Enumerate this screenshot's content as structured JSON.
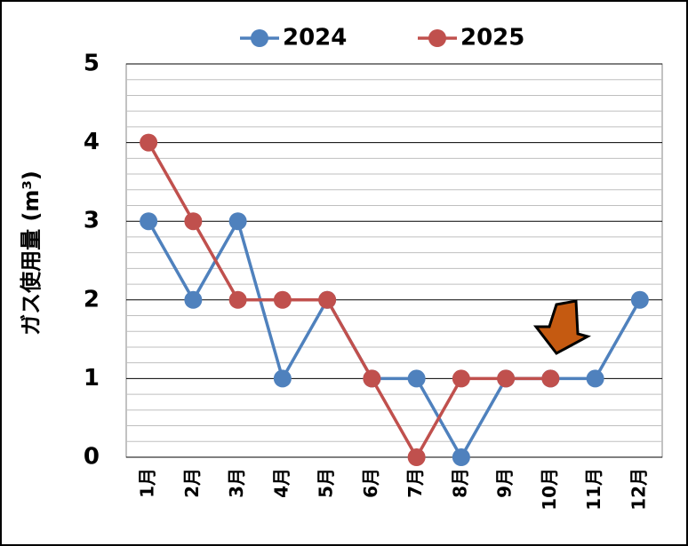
{
  "chart_data": {
    "type": "line",
    "y_label": "ガス使用量 (m³)",
    "categories": [
      "1月",
      "2月",
      "3月",
      "4月",
      "5月",
      "6月",
      "7月",
      "8月",
      "9月",
      "10月",
      "11月",
      "12月"
    ],
    "series": [
      {
        "name": "2024",
        "color": "#4f81bd",
        "values": [
          3,
          2,
          3,
          1,
          2,
          1,
          1,
          0,
          1,
          1,
          1,
          2
        ]
      },
      {
        "name": "2025",
        "color": "#c0504d",
        "values": [
          4,
          3,
          2,
          2,
          2,
          1,
          0,
          1,
          1,
          1,
          null,
          null
        ]
      }
    ],
    "ylim": [
      0,
      5
    ],
    "yticks": [
      0,
      1,
      2,
      3,
      4,
      5
    ],
    "minor_yticks": [
      0.2,
      0.4,
      0.6,
      0.8,
      1.2,
      1.4,
      1.6,
      1.8,
      2.2,
      2.4,
      2.6,
      2.8,
      3.2,
      3.4,
      3.6,
      3.8,
      4.2,
      4.4,
      4.6,
      4.8
    ],
    "grid": true,
    "legend": "top"
  }
}
